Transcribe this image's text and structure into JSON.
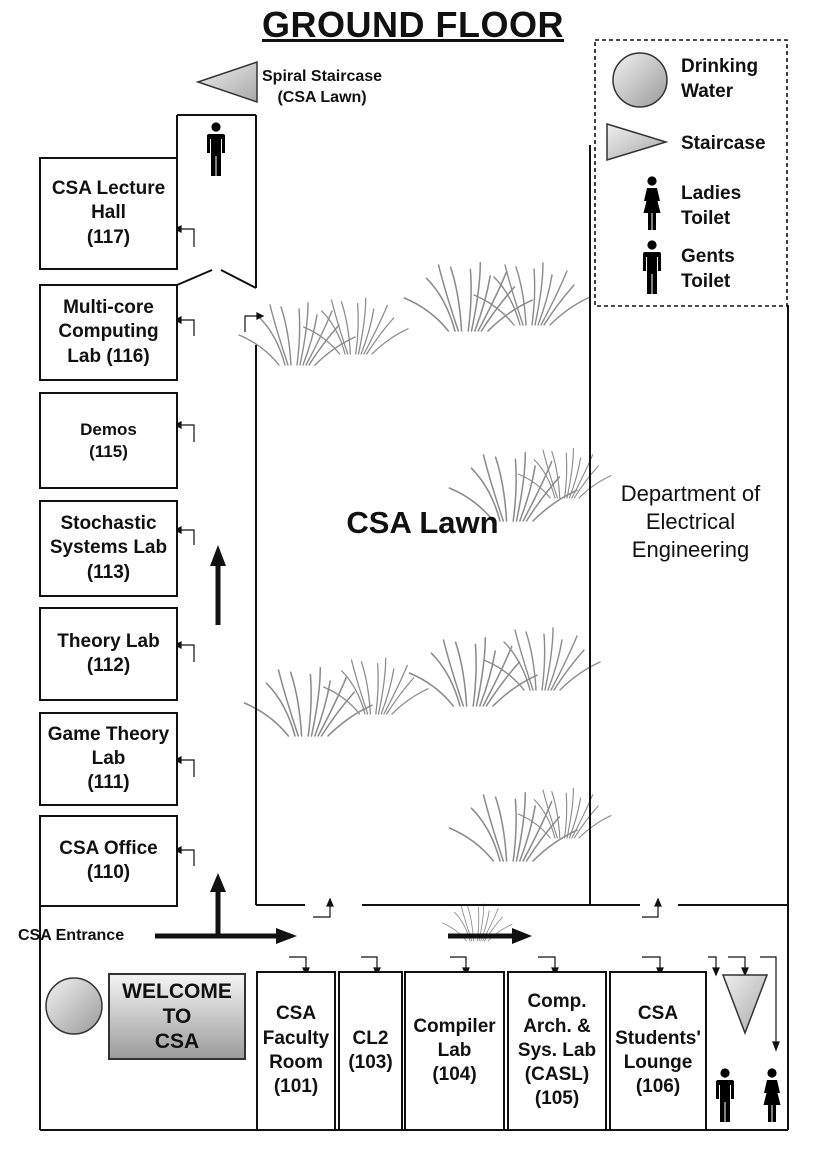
{
  "title": "GROUND FLOOR",
  "lawn_label": "CSA Lawn",
  "department_label": "Department of\nElectrical\nEngineering",
  "spiral_staircase_label": "Spiral Staircase\n(CSA Lawn)",
  "entrance_label": "CSA Entrance",
  "welcome_sign": "WELCOME\nTO\nCSA",
  "legend": {
    "drinking_water": "Drinking\nWater",
    "staircase": "Staircase",
    "ladies_toilet": "Ladies\nToilet",
    "gents_toilet": "Gents\nToilet"
  },
  "west_rooms": [
    {
      "label": "CSA Lecture\nHall\n(117)"
    },
    {
      "label": "Multi-core\nComputing\nLab (116)"
    },
    {
      "label": "Demos\n(115)"
    },
    {
      "label": "Stochastic\nSystems Lab\n(113)"
    },
    {
      "label": "Theory Lab\n(112)"
    },
    {
      "label": "Game Theory\nLab\n(111)"
    },
    {
      "label": "CSA Office\n(110)"
    }
  ],
  "south_rooms": [
    {
      "label": "CSA\nFaculty\nRoom\n(101)"
    },
    {
      "label": "CL2\n(103)"
    },
    {
      "label": "Compiler\nLab\n(104)"
    },
    {
      "label": "Comp.\nArch. &\nSys. Lab\n(CASL)\n(105)"
    },
    {
      "label": "CSA\nStudents'\nLounge\n(106)"
    }
  ],
  "colors": {
    "line": "#111111",
    "symbol_fill": "#c4c4c4",
    "grass": "#7a7a7a"
  }
}
